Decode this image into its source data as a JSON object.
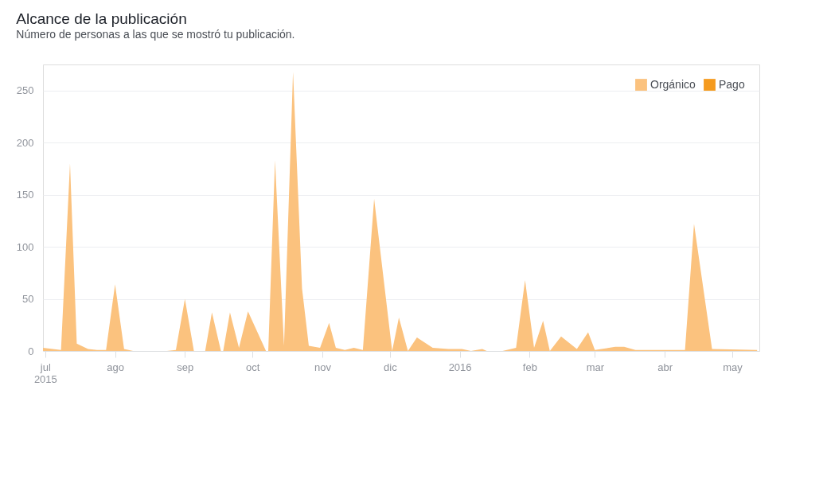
{
  "chart_data": {
    "type": "area",
    "title": "Alcance de la publicación",
    "subtitle": "Número de personas a las que se mostró tu publicación.",
    "x": [
      "2015-06-30",
      "2015-07-08",
      "2015-07-12",
      "2015-07-15",
      "2015-07-20",
      "2015-07-24",
      "2015-07-28",
      "2015-08-01",
      "2015-08-05",
      "2015-08-09",
      "2015-08-24",
      "2015-08-28",
      "2015-09-01",
      "2015-09-05",
      "2015-09-10",
      "2015-09-13",
      "2015-09-17",
      "2015-09-18",
      "2015-09-21",
      "2015-09-25",
      "2015-09-29",
      "2015-10-07",
      "2015-10-08",
      "2015-10-11",
      "2015-10-15",
      "2015-10-19",
      "2015-10-23",
      "2015-10-26",
      "2015-10-31",
      "2015-11-04",
      "2015-11-07",
      "2015-11-11",
      "2015-11-15",
      "2015-11-19",
      "2015-11-24",
      "2015-12-02",
      "2015-12-05",
      "2015-12-09",
      "2015-12-13",
      "2015-12-20",
      "2015-12-27",
      "2016-01-02",
      "2016-01-06",
      "2016-01-11",
      "2016-01-13",
      "2016-01-20",
      "2016-01-26",
      "2016-01-30",
      "2016-02-03",
      "2016-02-07",
      "2016-02-10",
      "2016-02-15",
      "2016-02-22",
      "2016-02-27",
      "2016-03-01",
      "2016-03-10",
      "2016-03-14",
      "2016-03-19",
      "2016-04-10",
      "2016-04-14",
      "2016-04-22",
      "2016-05-12"
    ],
    "series": [
      {
        "name": "Orgánico",
        "color": "#fbc27e",
        "values": [
          3,
          1,
          180,
          7,
          2,
          1,
          1,
          64,
          2,
          0,
          0,
          1,
          50,
          0,
          0,
          37,
          0,
          0,
          37,
          3,
          38,
          0,
          0,
          183,
          5,
          268,
          60,
          5,
          3,
          27,
          3,
          1,
          3,
          1,
          146,
          0,
          32,
          0,
          13,
          3,
          2,
          2,
          0,
          2,
          0,
          0,
          3,
          68,
          3,
          29,
          0,
          14,
          2,
          18,
          1,
          4,
          4,
          1,
          1,
          122,
          2,
          1
        ]
      },
      {
        "name": "Pago",
        "color": "#f59b1f",
        "values": [
          null,
          null,
          null,
          null,
          null,
          null,
          null,
          null,
          null,
          null,
          null,
          null,
          null,
          null,
          null,
          null,
          null,
          null,
          null,
          null,
          null,
          null,
          null,
          null,
          null,
          null,
          null,
          null,
          null,
          null,
          null,
          null,
          null,
          null,
          null,
          null,
          null,
          null,
          null,
          null,
          null,
          null,
          null,
          null,
          null,
          null,
          null,
          null,
          null,
          null,
          null,
          null,
          null,
          null,
          null,
          null,
          null,
          null,
          null,
          null,
          null,
          null
        ]
      }
    ],
    "xlim": [
      "2015-06-30",
      "2016-05-13"
    ],
    "xticks": [
      {
        "value": "2015-07-01",
        "label": "jul\n2015"
      },
      {
        "value": "2015-08-01",
        "label": "ago"
      },
      {
        "value": "2015-09-01",
        "label": "sep"
      },
      {
        "value": "2015-10-01",
        "label": "oct"
      },
      {
        "value": "2015-11-01",
        "label": "nov"
      },
      {
        "value": "2015-12-01",
        "label": "dic"
      },
      {
        "value": "2016-01-01",
        "label": "2016"
      },
      {
        "value": "2016-02-01",
        "label": "feb"
      },
      {
        "value": "2016-03-01",
        "label": "mar"
      },
      {
        "value": "2016-04-01",
        "label": "abr"
      },
      {
        "value": "2016-05-01",
        "label": "may"
      }
    ],
    "ylim": [
      0,
      275
    ],
    "yticks": [
      0,
      50,
      100,
      150,
      200,
      250
    ],
    "grid": "y",
    "legend": "top right"
  }
}
